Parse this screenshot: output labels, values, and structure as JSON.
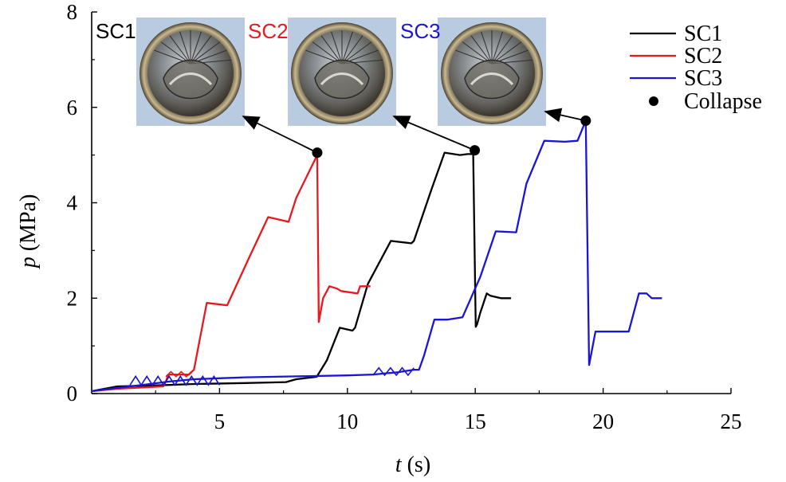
{
  "chart_data": {
    "type": "line",
    "xlabel_var": "t",
    "xlabel_unit": " (s)",
    "ylabel_var": "p",
    "ylabel_unit": " (MPa)",
    "xlim": [
      0,
      25
    ],
    "ylim": [
      0,
      8
    ],
    "xticks": [
      5,
      10,
      15,
      20,
      25
    ],
    "yticks": [
      0,
      2,
      4,
      6,
      8
    ],
    "series": [
      {
        "name": "SC1",
        "color": "#000000",
        "x": [
          0,
          0.5,
          1.0,
          2.5,
          4.0,
          6.0,
          7.6,
          8.0,
          8.8,
          9.2,
          9.7,
          10.2,
          10.3,
          10.8,
          11.7,
          12.5,
          12.6,
          13.3,
          13.8,
          14.4,
          14.7,
          14.92,
          15.02,
          15.07,
          15.2,
          15.45,
          15.6,
          16.0,
          16.4
        ],
        "y": [
          0.05,
          0.1,
          0.15,
          0.17,
          0.2,
          0.22,
          0.24,
          0.3,
          0.35,
          0.7,
          1.38,
          1.32,
          1.38,
          2.3,
          3.2,
          3.15,
          3.2,
          4.3,
          5.05,
          5.0,
          5.02,
          5.02,
          1.4,
          1.45,
          1.7,
          2.1,
          2.05,
          2.0,
          2.0
        ]
      },
      {
        "name": "SC2",
        "color": "#e8191e",
        "x": [
          0,
          1.0,
          2.8,
          2.9,
          3.0,
          3.8,
          4.0,
          4.5,
          5.3,
          6.2,
          6.9,
          7.7,
          8.0,
          8.82,
          8.88,
          9.05,
          9.3,
          9.6,
          9.75,
          10.4,
          10.5,
          10.7,
          10.9
        ],
        "y": [
          0.05,
          0.1,
          0.15,
          0.25,
          0.4,
          0.4,
          0.5,
          1.9,
          1.85,
          2.9,
          3.7,
          3.6,
          4.1,
          5.0,
          1.5,
          2.0,
          2.25,
          2.2,
          2.15,
          2.1,
          2.25,
          2.25,
          2.25
        ]
      },
      {
        "name": "SC3",
        "color": "#1a14d6",
        "x": [
          0,
          1.0,
          2.0,
          3.0,
          4.0,
          5.0,
          6.0,
          8.0,
          10.0,
          11.0,
          12.0,
          12.6,
          12.8,
          13.0,
          13.4,
          13.9,
          14.5,
          15.2,
          15.8,
          16.6,
          17.0,
          17.7,
          18.5,
          19.0,
          19.32,
          19.45,
          19.7,
          19.8,
          20.4,
          21.0,
          21.4,
          21.7,
          21.9,
          22.3
        ],
        "y": [
          0.05,
          0.12,
          0.18,
          0.25,
          0.3,
          0.32,
          0.34,
          0.36,
          0.38,
          0.4,
          0.45,
          0.5,
          0.5,
          0.8,
          1.55,
          1.55,
          1.6,
          2.45,
          3.4,
          3.38,
          4.4,
          5.3,
          5.28,
          5.3,
          5.72,
          0.6,
          1.3,
          1.3,
          1.3,
          1.3,
          2.1,
          2.1,
          2.0,
          2.0
        ]
      }
    ],
    "collapse_points": [
      {
        "series": "SC2",
        "x": 8.82,
        "y": 5.05
      },
      {
        "series": "SC1",
        "x": 14.98,
        "y": 5.1
      },
      {
        "series": "SC3",
        "x": 19.32,
        "y": 5.72
      }
    ],
    "legend": [
      "SC1",
      "SC2",
      "SC3",
      "Collapse"
    ],
    "legend_position": "top-right",
    "photo_labels": [
      {
        "text": "SC1",
        "color": "#000000"
      },
      {
        "text": "SC2",
        "color": "#e8191e"
      },
      {
        "text": "SC3",
        "color": "#1a14d6"
      }
    ]
  }
}
